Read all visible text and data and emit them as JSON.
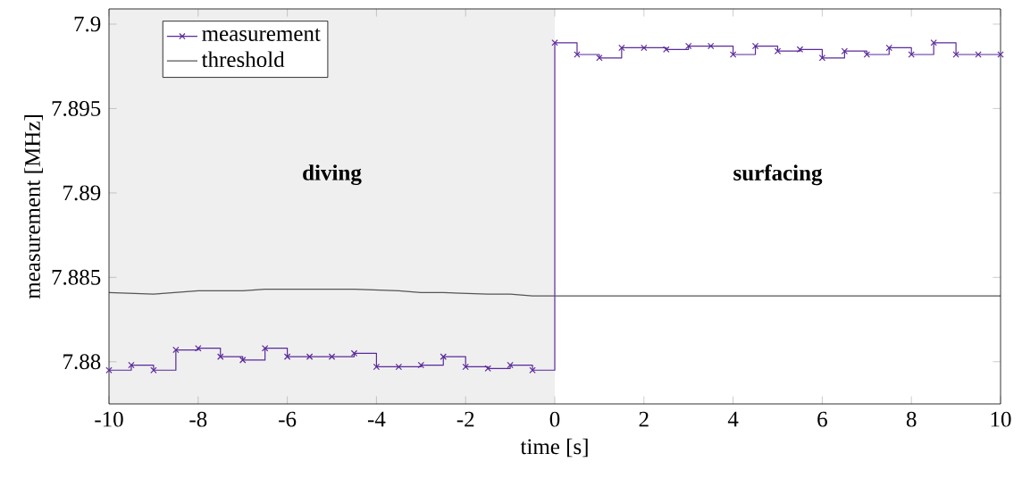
{
  "chart_data": {
    "type": "step",
    "xlabel": "time [s]",
    "ylabel": "measurement [MHz]",
    "xlim": [
      -10,
      10
    ],
    "ylim": [
      7.8775,
      7.9009
    ],
    "xticks": [
      -10,
      -8,
      -6,
      -4,
      -2,
      0,
      2,
      4,
      6,
      8,
      10
    ],
    "yticks": [
      7.88,
      7.885,
      7.89,
      7.895,
      7.9
    ],
    "legend": "top left",
    "grid": false,
    "series": [
      {
        "name": "measurement",
        "color": "#5a2a9a",
        "marker": "cross",
        "x": [
          -10,
          -9.5,
          -9,
          -8.5,
          -8,
          -7.5,
          -7,
          -6.5,
          -6,
          -5.5,
          -5,
          -4.5,
          -4,
          -3.5,
          -3,
          -2.5,
          -2,
          -1.5,
          -1,
          -0.5,
          0,
          0.5,
          1,
          1.5,
          2,
          2.5,
          3,
          3.5,
          4,
          4.5,
          5,
          5.5,
          6,
          6.5,
          7,
          7.5,
          8,
          8.5,
          9,
          9.5,
          10
        ],
        "values": [
          7.8795,
          7.8798,
          7.8795,
          7.8807,
          7.8808,
          7.8803,
          7.8801,
          7.8808,
          7.8803,
          7.8803,
          7.8803,
          7.8805,
          7.8797,
          7.8797,
          7.8798,
          7.8803,
          7.8797,
          7.8796,
          7.8798,
          7.8795,
          7.8989,
          7.8982,
          7.898,
          7.8986,
          7.8986,
          7.8985,
          7.8987,
          7.8987,
          7.8982,
          7.8987,
          7.8984,
          7.8985,
          7.898,
          7.8984,
          7.8982,
          7.8986,
          7.8982,
          7.8989,
          7.8982,
          7.8982,
          7.8982
        ]
      },
      {
        "name": "threshold",
        "type": "line",
        "color": "#555555",
        "marker": "none",
        "x": [
          -10,
          -9,
          -8,
          -7,
          -6.5,
          -4.5,
          -3.5,
          -3,
          -2.5,
          -1.5,
          -1,
          -0.5,
          0,
          10
        ],
        "values": [
          7.8841,
          7.884,
          7.8842,
          7.8842,
          7.8843,
          7.8843,
          7.8842,
          7.8841,
          7.8841,
          7.884,
          7.884,
          7.8839,
          7.8839,
          7.8839
        ]
      }
    ],
    "bands": [
      {
        "axis": "x",
        "from": -10,
        "to": 0,
        "label": "diving",
        "color": "#efefef"
      }
    ],
    "annotations": [
      "surfacing"
    ]
  }
}
